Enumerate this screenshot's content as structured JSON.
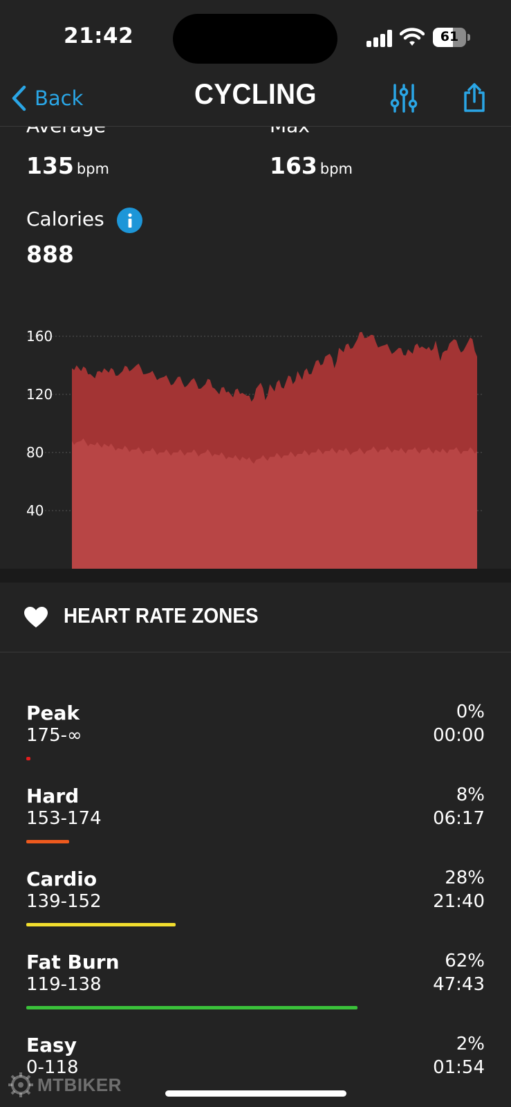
{
  "status_bar": {
    "time": "21:42",
    "battery_level": "61",
    "battery_fraction": 0.61
  },
  "nav": {
    "back_label": "Back",
    "title": "CYCLING",
    "filter_icon": "sliders-icon",
    "share_icon": "share-icon"
  },
  "heart_rate_summary": {
    "average_label": "Average",
    "average_value": "135",
    "average_unit": "bpm",
    "max_label": "Max",
    "max_value": "163",
    "max_unit": "bpm"
  },
  "calories": {
    "label": "Calories",
    "value": "888",
    "icon": "info-icon"
  },
  "chart_data": {
    "type": "area",
    "yticks": [
      "160",
      "120",
      "80",
      "40"
    ],
    "ylim": [
      0,
      165
    ],
    "grid": true,
    "series": [
      {
        "values": [
          138,
          140,
          136,
          138,
          134,
          131,
          136,
          138,
          135,
          137,
          133,
          136,
          139,
          137,
          140,
          138,
          134,
          135,
          133,
          131,
          132,
          130,
          127,
          132,
          128,
          126,
          130,
          128,
          124,
          127,
          130,
          124,
          120,
          125,
          122,
          118,
          124,
          121,
          119,
          115,
          124,
          128,
          116,
          127,
          122,
          130,
          124,
          133,
          127,
          136,
          130,
          138,
          134,
          143,
          140,
          146,
          148,
          138,
          152,
          149,
          155,
          152,
          158,
          163,
          159,
          161,
          156,
          153,
          154,
          151,
          149,
          152,
          147,
          151,
          148,
          155,
          153,
          151,
          150,
          157,
          143,
          150,
          155,
          158,
          152,
          150,
          156,
          158,
          146
        ]
      },
      {
        "values": [
          88,
          87,
          88,
          87,
          86,
          85,
          85,
          86,
          84,
          84,
          83,
          82,
          83,
          82,
          82,
          81,
          81,
          81,
          81,
          80,
          80,
          80,
          80,
          80,
          80,
          80,
          80,
          80,
          79,
          80,
          80,
          79,
          78,
          78,
          77,
          76,
          76,
          77,
          75,
          74,
          75,
          76,
          76,
          77,
          77,
          78,
          78,
          78,
          79,
          79,
          79,
          80,
          80,
          80,
          81,
          81,
          81,
          81,
          82,
          81,
          81,
          80,
          81,
          81,
          81,
          82,
          82,
          82,
          82,
          82,
          82,
          81,
          81,
          82,
          82,
          81,
          82,
          82,
          81,
          82,
          80,
          81,
          82,
          82,
          81,
          81,
          81,
          82,
          81
        ]
      }
    ]
  },
  "heart_rate_zones": {
    "title": "HEART RATE ZONES",
    "icon": "heart-icon",
    "zones": [
      {
        "name": "Peak",
        "range": "175-∞",
        "percent": "0%",
        "time": "00:00",
        "fraction": 0.0,
        "color": "#e41e1e"
      },
      {
        "name": "Hard",
        "range": "153-174",
        "percent": "8%",
        "time": "06:17",
        "fraction": 0.08,
        "color": "#ee5a1e"
      },
      {
        "name": "Cardio",
        "range": "139-152",
        "percent": "28%",
        "time": "21:40",
        "fraction": 0.28,
        "color": "#f2de2e"
      },
      {
        "name": "Fat Burn",
        "range": "119-138",
        "percent": "62%",
        "time": "47:43",
        "fraction": 0.62,
        "color": "#3ac13a"
      },
      {
        "name": "Easy",
        "range": "0-118",
        "percent": "2%",
        "time": "01:54",
        "fraction": 0.02,
        "color": "#2aa6e6"
      }
    ]
  },
  "watermark": "MTBIKER"
}
